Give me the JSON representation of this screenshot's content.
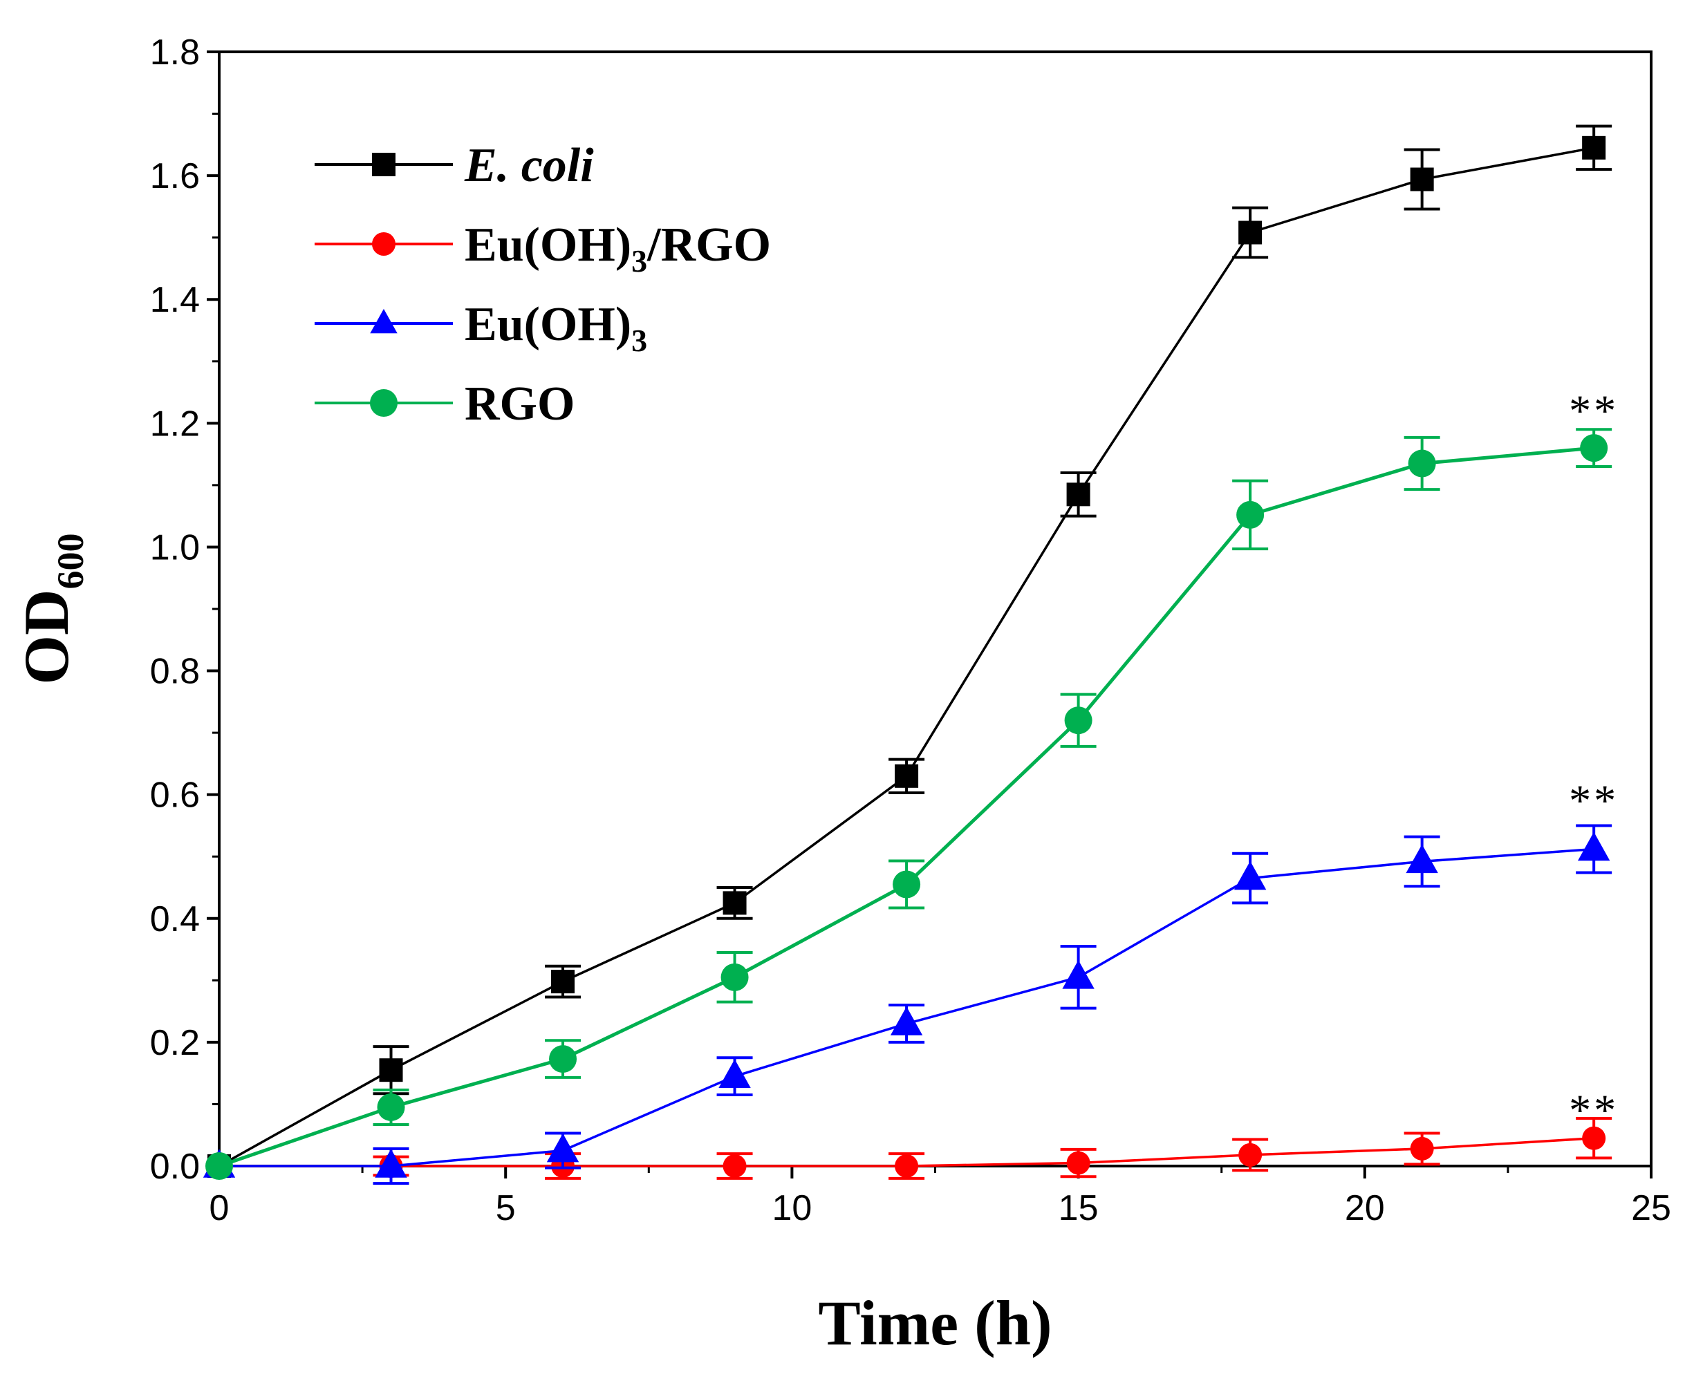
{
  "chart_data": {
    "type": "line",
    "title": "",
    "xlabel": "Time (h)",
    "ylabel": {
      "main": "OD",
      "sub": "600"
    },
    "xlim": [
      0,
      25
    ],
    "ylim": [
      0,
      1.8
    ],
    "xticks": [
      0,
      5,
      10,
      15,
      20,
      25
    ],
    "xtick_labels": [
      "0",
      "5",
      "10",
      "15",
      "20",
      "25"
    ],
    "yticks": [
      0,
      0.2,
      0.4,
      0.6,
      0.8,
      1.0,
      1.2,
      1.4,
      1.6,
      1.8
    ],
    "ytick_labels": [
      "0.0",
      "0.2",
      "0.4",
      "0.6",
      "0.8",
      "1.0",
      "1.2",
      "1.4",
      "1.6",
      "1.8"
    ],
    "grid": false,
    "legend_position": "top-left",
    "x": [
      0,
      3,
      6,
      9,
      12,
      15,
      18,
      21,
      24
    ],
    "series": [
      {
        "key": "ecoli",
        "name": "E. coli",
        "name_italic": true,
        "name_parts": [
          {
            "t": "E. coli",
            "sub": false
          }
        ],
        "color": "#000000",
        "marker": "square",
        "values": [
          0.0,
          0.155,
          0.298,
          0.425,
          0.63,
          1.085,
          1.508,
          1.594,
          1.645
        ],
        "errors": [
          0.0,
          0.038,
          0.025,
          0.025,
          0.027,
          0.035,
          0.04,
          0.048,
          0.035
        ]
      },
      {
        "key": "euoh3_rgo",
        "name": "Eu(OH)3/RGO",
        "name_italic": false,
        "name_parts": [
          {
            "t": "Eu(OH)",
            "sub": false
          },
          {
            "t": "3",
            "sub": true
          },
          {
            "t": "/RGO",
            "sub": false
          }
        ],
        "color": "#ff0000",
        "marker": "circle",
        "values": [
          0.0,
          0.0,
          0.0,
          0.0,
          0.0,
          0.005,
          0.018,
          0.028,
          0.045
        ],
        "errors": [
          0.0,
          0.015,
          0.02,
          0.02,
          0.02,
          0.022,
          0.025,
          0.025,
          0.032
        ]
      },
      {
        "key": "euoh3",
        "name": "Eu(OH)3",
        "name_italic": false,
        "name_parts": [
          {
            "t": "Eu(OH)",
            "sub": false
          },
          {
            "t": "3",
            "sub": true
          }
        ],
        "color": "#0000ff",
        "marker": "triangle",
        "values": [
          0.0,
          0.0,
          0.025,
          0.145,
          0.23,
          0.305,
          0.465,
          0.492,
          0.512
        ],
        "errors": [
          0.0,
          0.028,
          0.028,
          0.03,
          0.03,
          0.05,
          0.04,
          0.04,
          0.038
        ]
      },
      {
        "key": "rgo",
        "name": "RGO",
        "name_italic": false,
        "name_parts": [
          {
            "t": "RGO",
            "sub": false
          }
        ],
        "color": "#00b050",
        "marker": "circle",
        "values": [
          0.0,
          0.095,
          0.173,
          0.305,
          0.455,
          0.72,
          1.052,
          1.135,
          1.16
        ],
        "errors": [
          0.0,
          0.028,
          0.03,
          0.04,
          0.038,
          0.042,
          0.055,
          0.042,
          0.03
        ]
      }
    ],
    "annotations": [
      {
        "text": "**",
        "x": 24,
        "y": 1.23
      },
      {
        "text": "**",
        "x": 24,
        "y": 0.6
      },
      {
        "text": "**",
        "x": 24,
        "y": 0.1
      }
    ]
  }
}
